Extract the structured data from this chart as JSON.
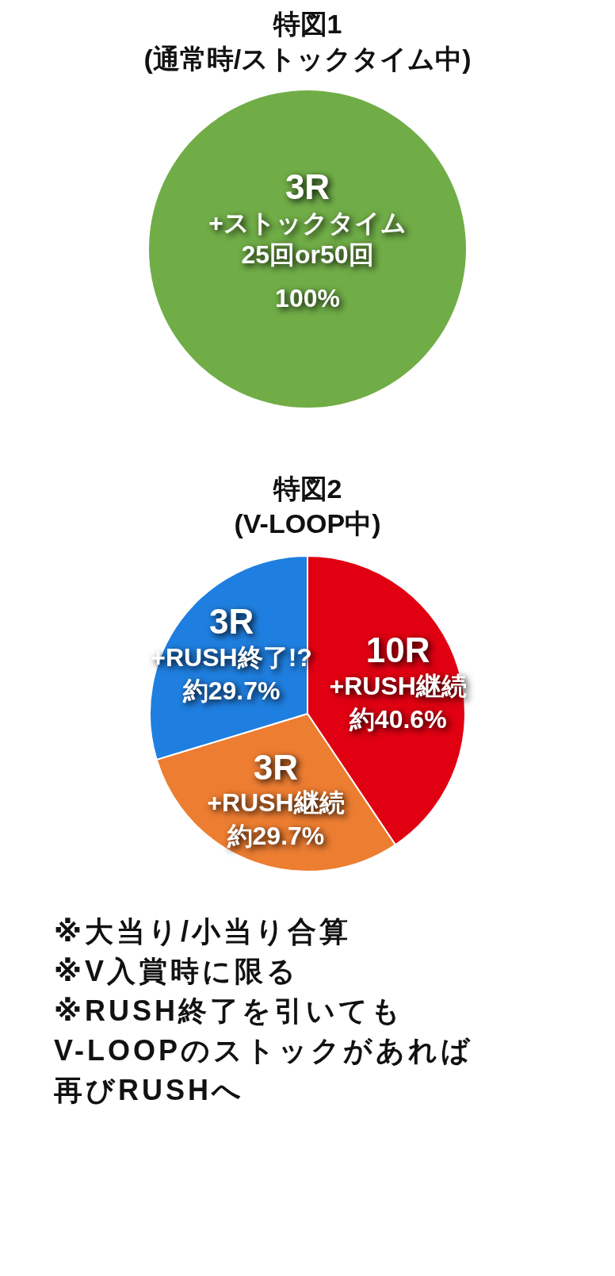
{
  "chart_data": [
    {
      "type": "pie",
      "title": "特図1",
      "subtitle": "(通常時/ストックタイム中)",
      "categories": [
        "3R\n+ストックタイム\n25回or50回"
      ],
      "values": [
        100
      ],
      "colors": [
        "#70ad47"
      ],
      "value_labels": [
        "100%"
      ]
    },
    {
      "type": "pie",
      "title": "特図2",
      "subtitle": "(V-LOOP中)",
      "categories": [
        "10R\n+RUSH継続",
        "3R\n+RUSH継続",
        "3R\n+RUSH終了!?"
      ],
      "values": [
        40.6,
        29.7,
        29.7
      ],
      "colors": [
        "#e00012",
        "#ed7d31",
        "#1f7fe0"
      ],
      "value_labels": [
        "約40.6%",
        "約29.7%",
        "約29.7%"
      ],
      "annotations": [
        "※大当り/小当り合算",
        "※V入賞時に限る",
        "※RUSH終了を引いても",
        "V-LOOPのストックがあれば",
        "再びRUSHへ"
      ]
    }
  ]
}
